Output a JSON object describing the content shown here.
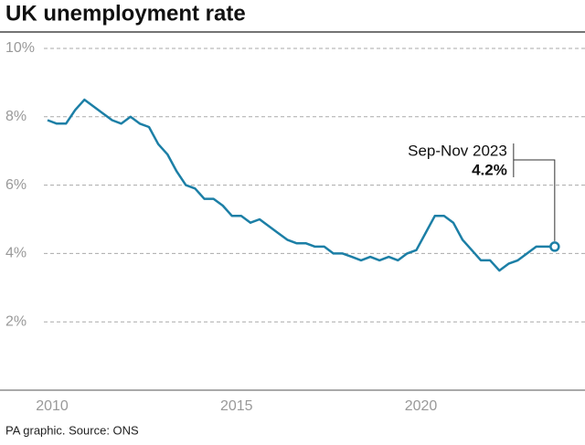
{
  "chart_data": {
    "type": "line",
    "title": "UK unemployment rate",
    "source": "PA graphic. Source: ONS",
    "x": [
      2010,
      2010.25,
      2010.5,
      2010.75,
      2011,
      2011.25,
      2011.5,
      2011.75,
      2012,
      2012.25,
      2012.5,
      2012.75,
      2013,
      2013.25,
      2013.5,
      2013.75,
      2014,
      2014.25,
      2014.5,
      2014.75,
      2015,
      2015.25,
      2015.5,
      2015.75,
      2016,
      2016.25,
      2016.5,
      2016.75,
      2017,
      2017.25,
      2017.5,
      2017.75,
      2018,
      2018.25,
      2018.5,
      2018.75,
      2019,
      2019.25,
      2019.5,
      2019.75,
      2020,
      2020.25,
      2020.5,
      2020.75,
      2021,
      2021.25,
      2021.5,
      2021.75,
      2022,
      2022.25,
      2022.5,
      2022.75,
      2023,
      2023.25,
      2023.5,
      2023.75
    ],
    "series": [
      {
        "color": "#1c7fa6",
        "values": [
          7.9,
          7.8,
          7.8,
          8.2,
          8.5,
          8.3,
          8.1,
          7.9,
          7.8,
          8.0,
          7.8,
          7.7,
          7.2,
          6.9,
          6.4,
          6.0,
          5.9,
          5.6,
          5.6,
          5.4,
          5.1,
          5.1,
          4.9,
          5.0,
          4.8,
          4.6,
          4.4,
          4.3,
          4.3,
          4.2,
          4.2,
          4.0,
          4.0,
          3.9,
          3.8,
          3.9,
          3.8,
          3.9,
          3.8,
          4.0,
          4.1,
          4.6,
          5.1,
          5.1,
          4.9,
          4.4,
          4.1,
          3.8,
          3.8,
          3.5,
          3.7,
          3.8,
          4.0,
          4.2,
          4.2,
          4.2
        ]
      }
    ],
    "annotation": {
      "text": "Sep-Nov 2023",
      "value_label": "4.2%"
    },
    "xlim": [
      2009.9,
      2024.2
    ],
    "xticks": [
      2010,
      2015,
      2020
    ],
    "ylim": [
      0,
      10
    ],
    "yticks": [
      {
        "value": 2,
        "label": "2%"
      },
      {
        "value": 4,
        "label": "4%"
      },
      {
        "value": 6,
        "label": "6%"
      },
      {
        "value": 8,
        "label": "8%"
      },
      {
        "value": 10,
        "label": "10%"
      }
    ],
    "grid": true
  }
}
